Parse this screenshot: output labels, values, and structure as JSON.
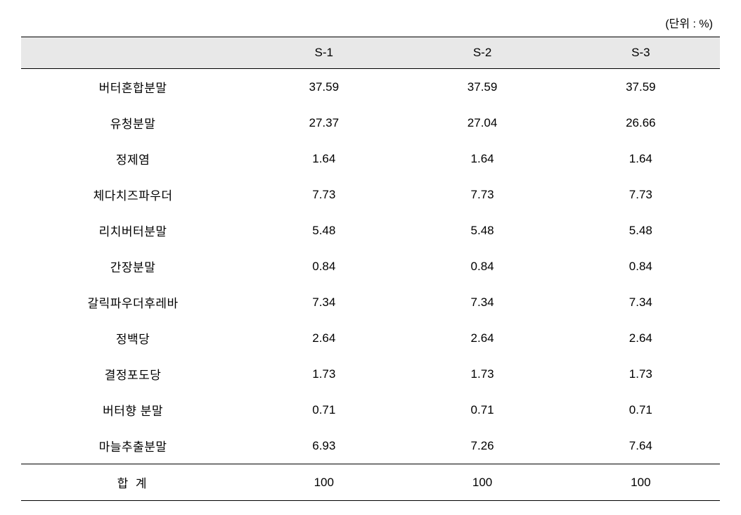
{
  "unit_label": "(단위 : %)",
  "table": {
    "type": "table",
    "background_color": "#ffffff",
    "header_background": "#e8e8e8",
    "border_color": "#000000",
    "text_color": "#000000",
    "font_size": 17,
    "columns": [
      "",
      "S-1",
      "S-2",
      "S-3"
    ],
    "column_widths": [
      "32%",
      "22.66%",
      "22.66%",
      "22.66%"
    ],
    "rows": [
      {
        "label": "버터혼합분말",
        "s1": "37.59",
        "s2": "37.59",
        "s3": "37.59"
      },
      {
        "label": "유청분말",
        "s1": "27.37",
        "s2": "27.04",
        "s3": "26.66"
      },
      {
        "label": "정제염",
        "s1": "1.64",
        "s2": "1.64",
        "s3": "1.64"
      },
      {
        "label": "체다치즈파우더",
        "s1": "7.73",
        "s2": "7.73",
        "s3": "7.73"
      },
      {
        "label": "리치버터분말",
        "s1": "5.48",
        "s2": "5.48",
        "s3": "5.48"
      },
      {
        "label": "간장분말",
        "s1": "0.84",
        "s2": "0.84",
        "s3": "0.84"
      },
      {
        "label": "갈릭파우더후레바",
        "s1": "7.34",
        "s2": "7.34",
        "s3": "7.34"
      },
      {
        "label": "정백당",
        "s1": "2.64",
        "s2": "2.64",
        "s3": "2.64"
      },
      {
        "label": "결정포도당",
        "s1": "1.73",
        "s2": "1.73",
        "s3": "1.73"
      },
      {
        "label": "버터향 분말",
        "s1": "0.71",
        "s2": "0.71",
        "s3": "0.71"
      },
      {
        "label": "마늘추출분말",
        "s1": "6.93",
        "s2": "7.26",
        "s3": "7.64"
      }
    ],
    "footer": {
      "label": "합 계",
      "s1": "100",
      "s2": "100",
      "s3": "100"
    }
  }
}
